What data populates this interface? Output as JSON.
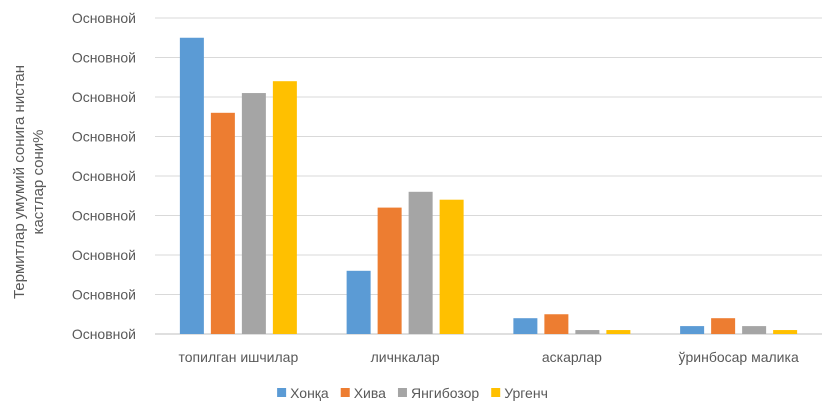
{
  "chart_data": {
    "type": "bar",
    "title": "",
    "xlabel": "",
    "ylabel_lines": [
      "Термитлар умумий сонига нистан",
      "кастлар сони%"
    ],
    "y_tick_labels": [
      "Основной",
      "Основной",
      "Основной",
      "Основной",
      "Основной",
      "Основной",
      "Основной",
      "Основной",
      "Основной"
    ],
    "ylim": [
      0,
      8
    ],
    "grid": true,
    "legend_position": "bottom",
    "categories": [
      "топилган ишчилар",
      "личнкалар",
      "аскарлар",
      "ўринбосар малика"
    ],
    "series": [
      {
        "name": "Хонқа",
        "color": "#5B9BD5",
        "values": [
          7.5,
          1.6,
          0.4,
          0.2
        ]
      },
      {
        "name": "Хива",
        "color": "#ED7D31",
        "values": [
          5.6,
          3.2,
          0.5,
          0.4
        ]
      },
      {
        "name": "Янгибозор",
        "color": "#A5A5A5",
        "values": [
          6.1,
          3.6,
          0.1,
          0.2
        ]
      },
      {
        "name": "Ургенч",
        "color": "#FFC000",
        "values": [
          6.4,
          3.4,
          0.1,
          0.1
        ]
      }
    ]
  }
}
